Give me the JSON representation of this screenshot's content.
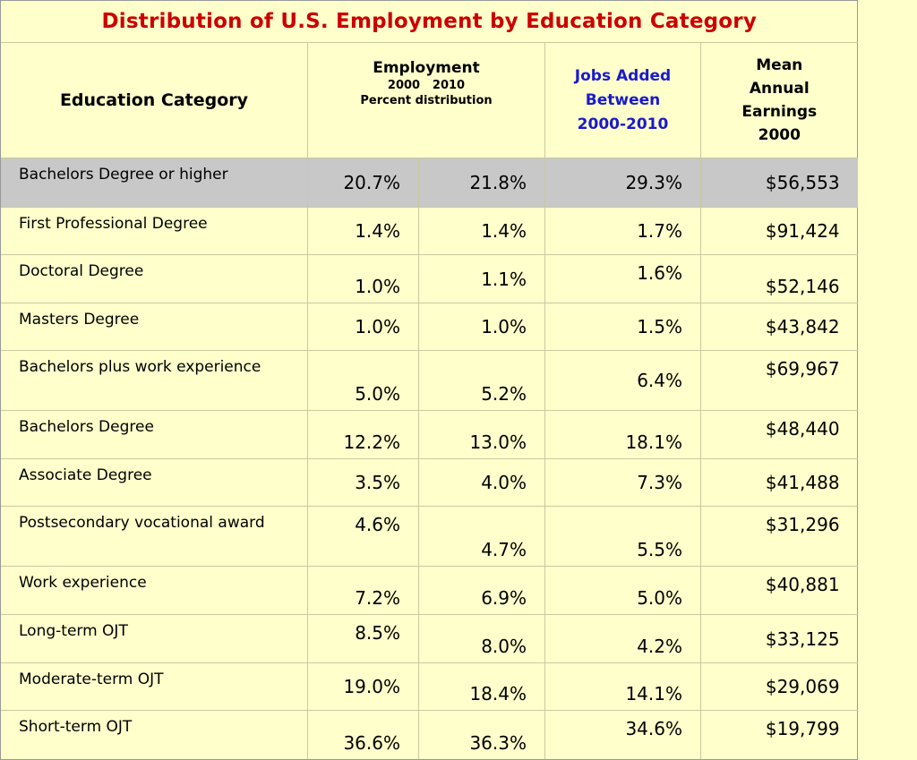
{
  "title": "Distribution of U.S. Employment by Education Category",
  "headers": {
    "category": "Education Category",
    "employment": "Employment",
    "year_2000": "2000",
    "year_2010": "2010",
    "percent_distribution": "Percent distribution",
    "jobs_added": [
      "Jobs Added",
      "Between",
      "2000-2010"
    ],
    "earnings": [
      "Mean",
      "Annual",
      "Earnings",
      "2000"
    ]
  },
  "colors": {
    "title": "#cc0000",
    "jobs_header": "#1a1acc",
    "background": "#ffffcc",
    "highlight_row": "#c8c8c8"
  },
  "chart_data": {
    "type": "table",
    "title": "Distribution of U.S. Employment by Education Category",
    "columns": [
      "Education Category",
      "Employment 2000",
      "Employment 2010",
      "Jobs Added Between 2000-2010",
      "Mean Annual Earnings 2000"
    ],
    "rows": [
      {
        "category": "Bachelors Degree or higher",
        "emp2000": "20.7%",
        "emp2010": "21.8%",
        "jobs": "29.3%",
        "earnings": "$56,553",
        "highlight": true
      },
      {
        "category": "First Professional Degree",
        "emp2000": "1.4%",
        "emp2010": "1.4%",
        "jobs": "1.7%",
        "earnings": "$91,424"
      },
      {
        "category": "Doctoral Degree",
        "emp2000": "1.0%",
        "emp2010": "1.1%",
        "jobs": "1.6%",
        "earnings": "$52,146"
      },
      {
        "category": "Masters Degree",
        "emp2000": "1.0%",
        "emp2010": "1.0%",
        "jobs": "1.5%",
        "earnings": "$43,842"
      },
      {
        "category": "Bachelors plus work experience",
        "emp2000": "5.0%",
        "emp2010": "5.2%",
        "jobs": "6.4%",
        "earnings": "$69,967"
      },
      {
        "category": "Bachelors Degree",
        "emp2000": "12.2%",
        "emp2010": "13.0%",
        "jobs": "18.1%",
        "earnings": "$48,440"
      },
      {
        "category": "Associate Degree",
        "emp2000": "3.5%",
        "emp2010": "4.0%",
        "jobs": "7.3%",
        "earnings": "$41,488"
      },
      {
        "category": "Postsecondary vocational award",
        "emp2000": "4.6%",
        "emp2010": "4.7%",
        "jobs": "5.5%",
        "earnings": "$31,296"
      },
      {
        "category": "Work experience",
        "emp2000": "7.2%",
        "emp2010": "6.9%",
        "jobs": "5.0%",
        "earnings": "$40,881"
      },
      {
        "category": "Long-term OJT",
        "emp2000": "8.5%",
        "emp2010": "8.0%",
        "jobs": "4.2%",
        "earnings": "$33,125"
      },
      {
        "category": "Moderate-term OJT",
        "emp2000": "19.0%",
        "emp2010": "18.4%",
        "jobs": "14.1%",
        "earnings": "$29,069"
      },
      {
        "category": "Short-term OJT",
        "emp2000": "36.6%",
        "emp2010": "36.3%",
        "jobs": "34.6%",
        "earnings": "$19,799"
      }
    ]
  }
}
